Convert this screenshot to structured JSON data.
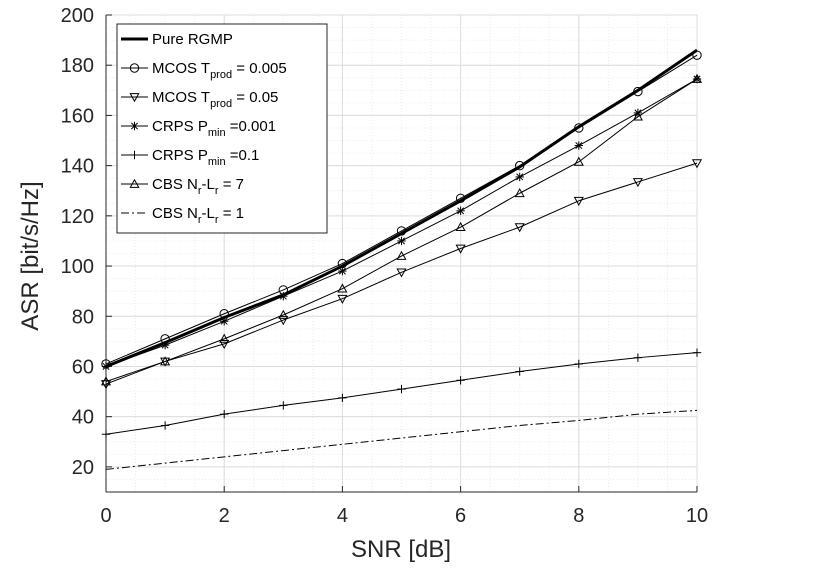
{
  "chart_data": {
    "type": "line",
    "title": "",
    "xlabel": "SNR [dB]",
    "ylabel": "ASR [bit/s/Hz]",
    "xlim": [
      0,
      10
    ],
    "ylim": [
      10,
      200
    ],
    "xticks": [
      "0",
      "2",
      "4",
      "6",
      "8",
      "10"
    ],
    "yticks": [
      "20",
      "40",
      "60",
      "80",
      "100",
      "120",
      "140",
      "160",
      "180",
      "200"
    ],
    "grid": true,
    "legend_position": "top-left",
    "x": [
      0,
      1,
      2,
      3,
      4,
      5,
      6,
      7,
      8,
      9,
      10
    ],
    "series": [
      {
        "name": "Pure RGMP",
        "legend_main": "Pure RGMP",
        "legend_sub": "",
        "legend_tail": "",
        "marker": "none",
        "dash": "solid",
        "bold": true,
        "values": [
          60,
          69.5,
          79.5,
          88.5,
          100,
          113,
          126,
          139.5,
          155.5,
          170,
          186
        ]
      },
      {
        "name": "MCOS T_prod = 0.005",
        "legend_main": "MCOS T",
        "legend_sub": "prod",
        "legend_tail": " = 0.005",
        "marker": "circle",
        "dash": "solid",
        "bold": false,
        "values": [
          61,
          71,
          81,
          90.5,
          101,
          114,
          127,
          140,
          155,
          169.5,
          184
        ]
      },
      {
        "name": "MCOS T_prod = 0.05",
        "legend_main": "MCOS T",
        "legend_sub": "prod",
        "legend_tail": " = 0.05",
        "marker": "triangle-down",
        "dash": "solid",
        "bold": false,
        "values": [
          53,
          62,
          69,
          78.5,
          87,
          97.5,
          107,
          115.5,
          126,
          133.5,
          141
        ]
      },
      {
        "name": "CRPS P_min =0.001",
        "legend_main": "CRPS P",
        "legend_sub": "min",
        "legend_tail": " =0.001",
        "marker": "asterisk",
        "dash": "solid",
        "bold": false,
        "values": [
          60,
          68.5,
          78,
          88,
          98,
          110,
          122,
          135.5,
          148,
          161,
          174.5
        ]
      },
      {
        "name": "CRPS P_min =0.1",
        "legend_main": "CRPS P",
        "legend_sub": "min",
        "legend_tail": " =0.1",
        "marker": "plus",
        "dash": "solid",
        "bold": false,
        "values": [
          33,
          36.5,
          41,
          44.5,
          47.5,
          51,
          54.5,
          58,
          61,
          63.5,
          65.5
        ]
      },
      {
        "name": "CBS N_r-L_r = 7",
        "legend_main": "CBS N",
        "legend_sub": "r",
        "legend_tail": "-L",
        "legend_sub2": "r",
        "legend_tail2": " = 7",
        "marker": "triangle-up",
        "dash": "solid",
        "bold": false,
        "values": [
          54,
          62,
          71,
          80.5,
          91,
          104,
          115.5,
          129,
          141.5,
          159.5,
          174.5
        ]
      },
      {
        "name": "CBS N_r-L_r = 1",
        "legend_main": "CBS N",
        "legend_sub": "r",
        "legend_tail": "-L",
        "legend_sub2": "r",
        "legend_tail2": " = 1",
        "marker": "none",
        "dash": "dashdot",
        "bold": false,
        "values": [
          19,
          21.5,
          24,
          26.5,
          29,
          31.5,
          34,
          36.5,
          38.5,
          41,
          42.5
        ]
      }
    ]
  }
}
